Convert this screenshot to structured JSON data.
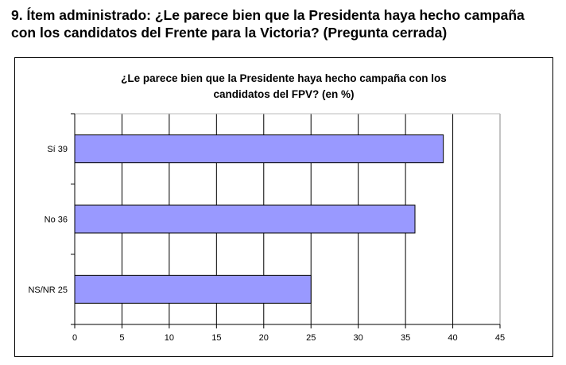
{
  "heading": {
    "line1": "9. Ítem administrado: ¿Le parece bien que la Presidenta haya hecho campaña",
    "line2": "con los candidatos del Frente para la Victoria? (Pregunta cerrada)"
  },
  "chart_data": {
    "type": "bar",
    "orientation": "horizontal",
    "title_line1": "¿Le parece bien que la Presidente haya hecho campaña con los",
    "title_line2": "candidatos del FPV? (en %)",
    "categories": [
      "Sí 39",
      "No 36",
      "NS/NR 25"
    ],
    "values": [
      39,
      36,
      25
    ],
    "xlim": [
      0,
      45
    ],
    "xticks": [
      "0",
      "5",
      "10",
      "15",
      "20",
      "25",
      "30",
      "35",
      "40",
      "45"
    ],
    "grid": "vertical",
    "bar_color": "#9999FF",
    "xlabel": "",
    "ylabel": ""
  }
}
